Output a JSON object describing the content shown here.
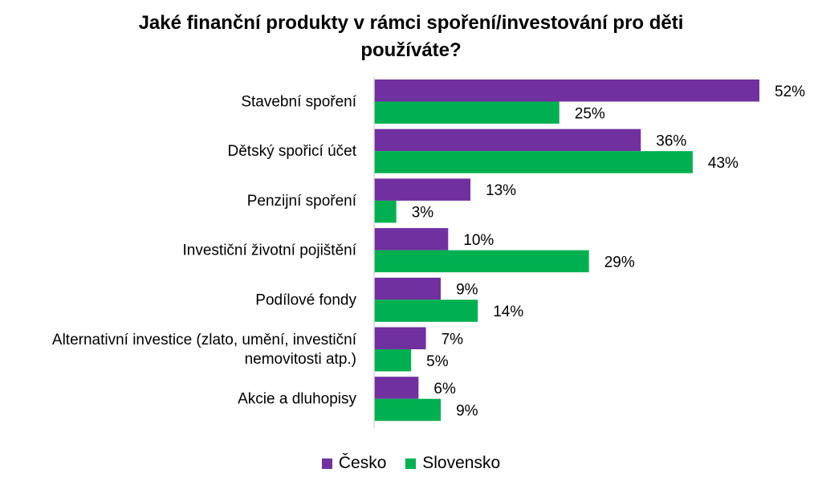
{
  "chart_data": {
    "type": "bar",
    "orientation": "horizontal",
    "title_lines": [
      "Jaké finanční produkty v rámci spoření/investování pro děti",
      "používáte?"
    ],
    "categories": [
      [
        "Stavební spoření"
      ],
      [
        "Dětský spořicí účet"
      ],
      [
        "Penzijní spoření"
      ],
      [
        "Investiční životní pojištění"
      ],
      [
        "Podílové fondy"
      ],
      [
        "Alternativní investice (zlato, umění, investiční",
        "nemovitosti atp.)"
      ],
      [
        "Akcie a dluhopisy"
      ]
    ],
    "series": [
      {
        "name": "Česko",
        "color": "#7030A0",
        "values": [
          52,
          36,
          13,
          10,
          9,
          7,
          6
        ]
      },
      {
        "name": "Slovensko",
        "color": "#00B050",
        "values": [
          25,
          43,
          3,
          29,
          14,
          5,
          9
        ]
      }
    ],
    "value_suffix": "%",
    "xlim": [
      0,
      55
    ],
    "grid": false,
    "legend_position": "bottom"
  }
}
